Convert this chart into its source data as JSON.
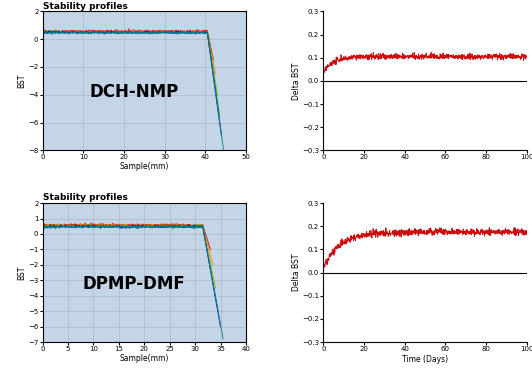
{
  "top_left": {
    "title": "Stability profiles",
    "xlabel": "Sample(mm)",
    "ylabel": "BST",
    "label": "DCH-NMP",
    "xlim": [
      0,
      50
    ],
    "ylim": [
      -8.0,
      2.0
    ],
    "xticks": [
      0.0,
      10.0,
      20.0,
      30.0,
      40.0,
      50.0
    ],
    "yticks": [
      -8.0,
      -6.0,
      -4.0,
      -2.0,
      0.0,
      2.0
    ],
    "bg_color": "#c5d5e8",
    "flat_level": 0.5,
    "flat_end": 40.5,
    "drop_x": 41.5,
    "drop_ends": [
      42.0,
      42.5,
      43.0,
      43.5,
      44.0,
      44.5
    ],
    "drop_bottoms": [
      -1.5,
      -2.5,
      -4.0,
      -5.5,
      -7.0,
      -8.0
    ],
    "offsets": [
      0.08,
      0.04,
      0.02,
      0.0,
      -0.02,
      -0.04
    ]
  },
  "bottom_left": {
    "title": "Stability profiles",
    "xlabel": "Sample(mm)",
    "ylabel": "BST",
    "label": "DPMP-DMF",
    "xlim": [
      0,
      40
    ],
    "ylim": [
      -7.0,
      2.0
    ],
    "xticks": [
      0.0,
      5.0,
      10.0,
      15.0,
      20.0,
      25.0,
      30.0,
      35.0,
      40.0
    ],
    "yticks": [
      -7.0,
      -6.0,
      -5.0,
      -4.0,
      -3.0,
      -2.0,
      -1.0,
      0.0,
      1.0,
      2.0
    ],
    "bg_color": "#c5d5e8",
    "flat_level": 0.5,
    "flat_end": 31.5,
    "drop_x": 32.5,
    "drop_ends": [
      33.0,
      33.5,
      34.0,
      34.5,
      35.0,
      35.5
    ],
    "drop_bottoms": [
      -1.0,
      -2.0,
      -3.5,
      -5.0,
      -6.0,
      -6.8
    ],
    "offsets": [
      0.08,
      0.04,
      0.02,
      0.0,
      -0.02,
      -0.04
    ]
  },
  "top_right": {
    "ylabel": "Delta BST",
    "xlim": [
      0,
      100
    ],
    "ylim": [
      -0.3,
      0.3
    ],
    "xticks": [
      0,
      20,
      40,
      60,
      80,
      100
    ],
    "yticks": [
      -0.3,
      -0.2,
      -0.1,
      0.0,
      0.1,
      0.2,
      0.3
    ],
    "start_val": 0.04,
    "rise_tau": 5,
    "end_val": 0.105,
    "noise_scale": 0.006,
    "line_color": "#cc0000"
  },
  "bottom_right": {
    "xlabel": "Time (Days)",
    "ylabel": "Delta BST",
    "xlim": [
      0,
      100
    ],
    "ylim": [
      -0.3,
      0.3
    ],
    "xticks": [
      0,
      20,
      40,
      60,
      80,
      100
    ],
    "yticks": [
      -0.3,
      -0.2,
      -0.1,
      0.0,
      0.1,
      0.2,
      0.3
    ],
    "start_val": 0.02,
    "rise_tau": 8,
    "end_val": 0.175,
    "noise_scale": 0.007,
    "line_color": "#cc0000"
  },
  "grid_color": "#999999",
  "grid_alpha": 0.6,
  "profile_colors": [
    "#dd0000",
    "#ee8800",
    "#aaaa00",
    "#00aa00",
    "#0000cc",
    "#008888"
  ],
  "font_size_title": 6.5,
  "font_size_label": 5.5,
  "font_size_tick": 5.0,
  "label_fontsize": 12
}
